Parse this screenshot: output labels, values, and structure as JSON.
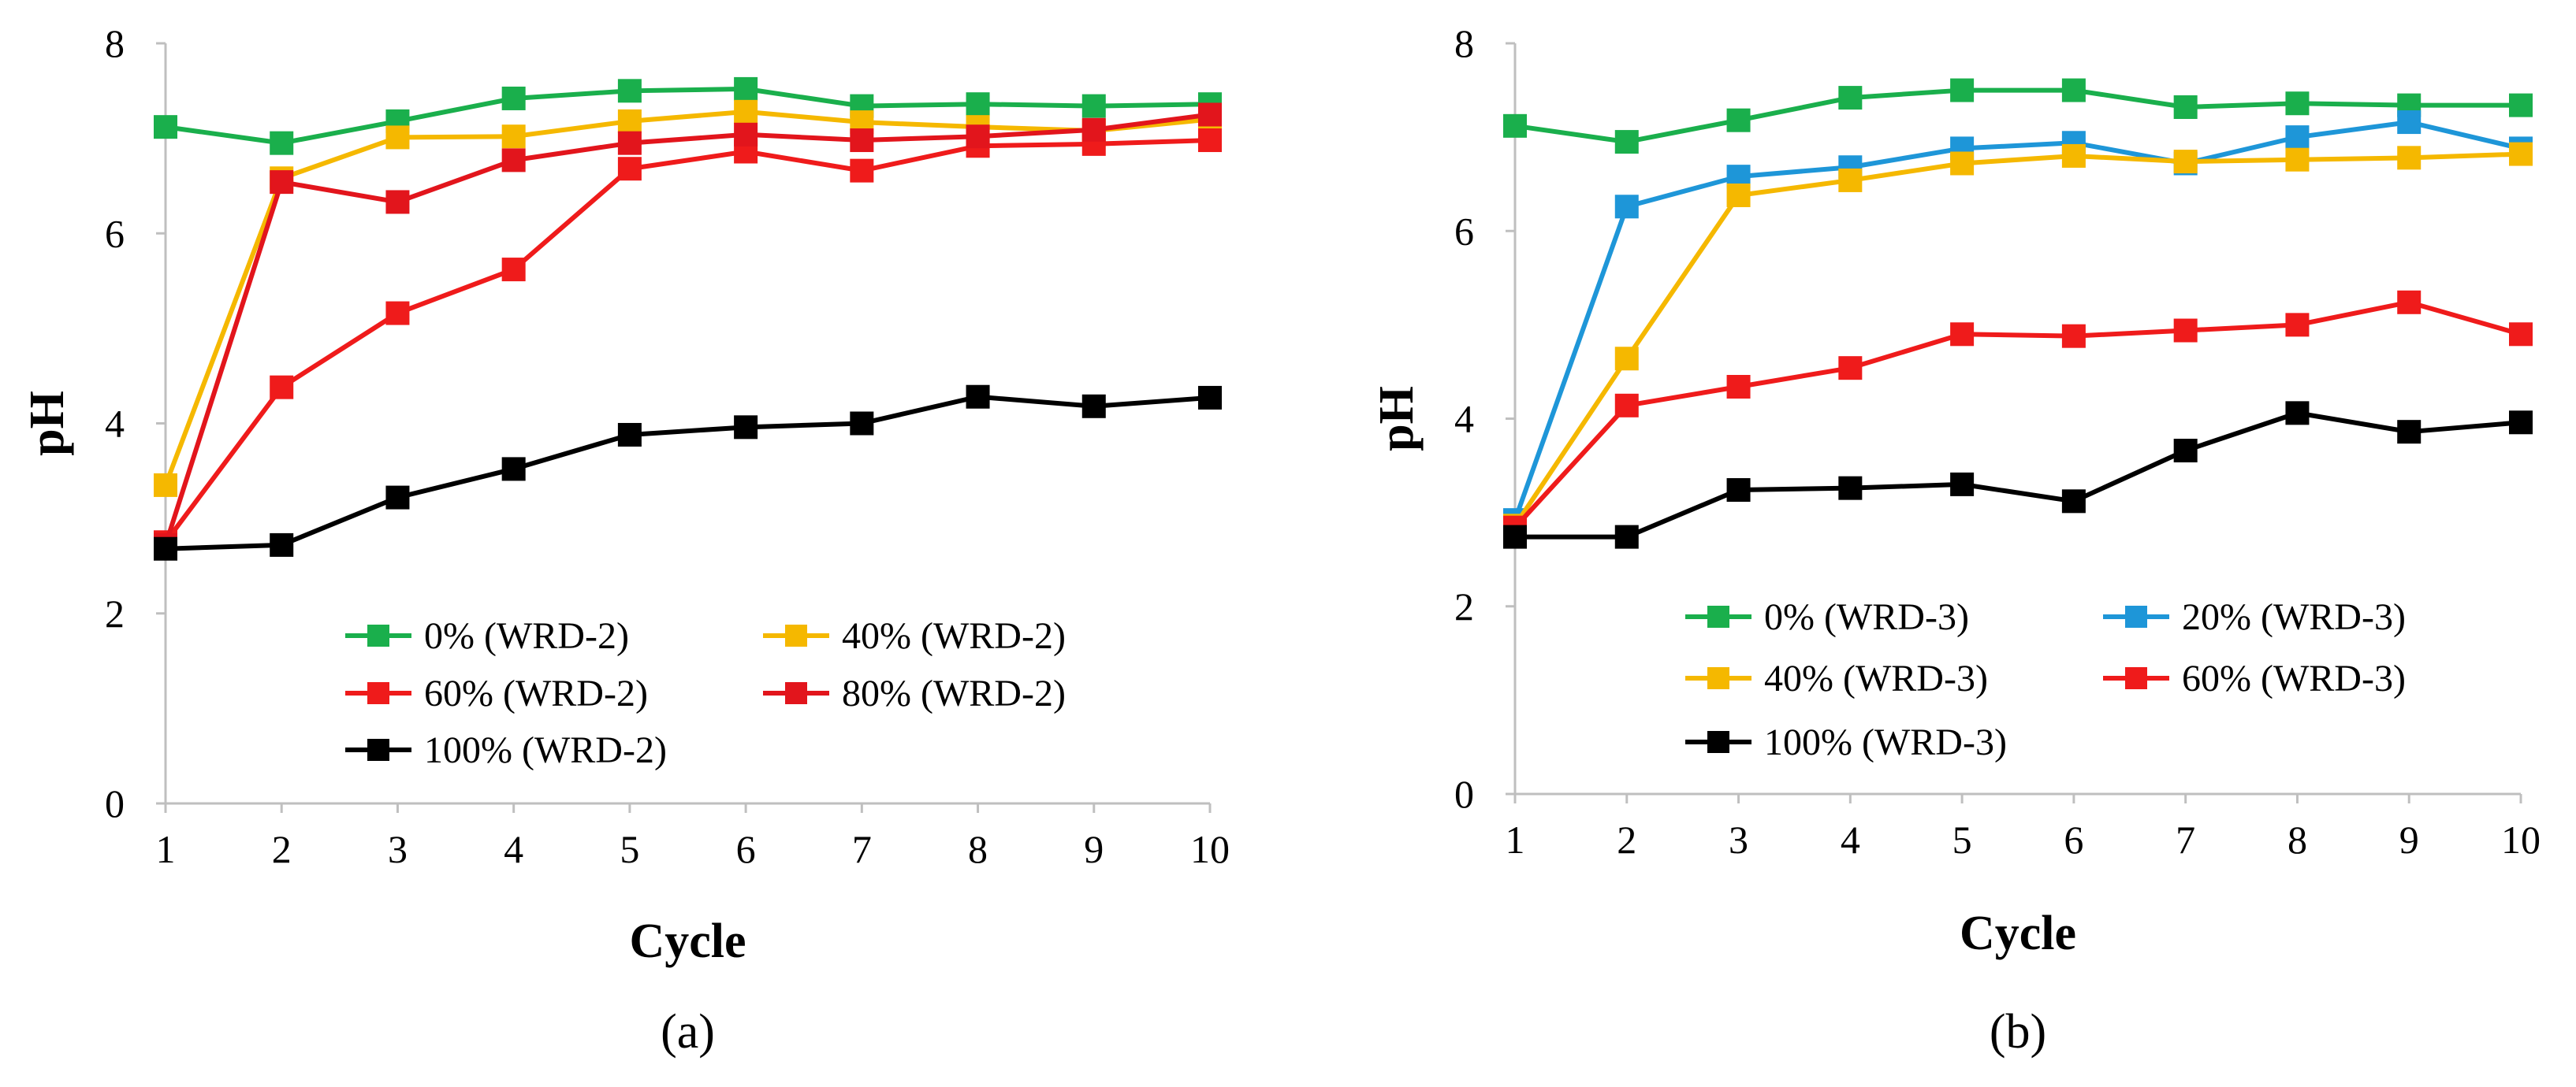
{
  "chart_data": [
    {
      "type": "line",
      "panel_label": "(a)",
      "xlabel": "Cycle",
      "ylabel": "pH",
      "x": [
        1,
        2,
        3,
        4,
        5,
        6,
        7,
        8,
        9,
        10
      ],
      "ylim": [
        0,
        8
      ],
      "yticks": [
        0,
        2,
        4,
        6,
        8
      ],
      "grid": false,
      "legend_position": "lower-right",
      "series": [
        {
          "name": "0% (WRD-2)",
          "color": "#1aaf4c",
          "values": [
            7.12,
            6.95,
            7.18,
            7.42,
            7.5,
            7.52,
            7.34,
            7.36,
            7.34,
            7.36
          ]
        },
        {
          "name": "40% (WRD-2)",
          "color": "#f5b800",
          "values": [
            3.35,
            6.58,
            7.01,
            7.02,
            7.18,
            7.28,
            7.17,
            7.12,
            7.08,
            7.2
          ]
        },
        {
          "name": "60% (WRD-2)",
          "color": "#ef1b1b",
          "values": [
            2.75,
            4.38,
            5.16,
            5.62,
            6.68,
            6.86,
            6.66,
            6.92,
            6.94,
            6.98
          ]
        },
        {
          "name": "80% (WRD-2)",
          "color": "#e2151c",
          "values": [
            2.72,
            6.54,
            6.33,
            6.77,
            6.95,
            7.04,
            6.98,
            7.02,
            7.09,
            7.25
          ]
        },
        {
          "name": "100% (WRD-2)",
          "color": "#000000",
          "values": [
            2.68,
            2.72,
            3.22,
            3.52,
            3.88,
            3.96,
            4.0,
            4.28,
            4.18,
            4.27
          ]
        }
      ]
    },
    {
      "type": "line",
      "panel_label": "(b)",
      "xlabel": "Cycle",
      "ylabel": "pH",
      "x": [
        1,
        2,
        3,
        4,
        5,
        6,
        7,
        8,
        9,
        10
      ],
      "ylim": [
        0,
        8
      ],
      "yticks": [
        0,
        2,
        4,
        6,
        8
      ],
      "grid": false,
      "legend_position": "lower-right",
      "series": [
        {
          "name": "0% (WRD-3)",
          "color": "#1aaf4c",
          "values": [
            7.12,
            6.95,
            7.18,
            7.42,
            7.5,
            7.5,
            7.32,
            7.36,
            7.34,
            7.34
          ]
        },
        {
          "name": "20% (WRD-3)",
          "color": "#1e96d8",
          "values": [
            2.92,
            6.26,
            6.58,
            6.68,
            6.88,
            6.94,
            6.72,
            7.0,
            7.16,
            6.88
          ]
        },
        {
          "name": "40% (WRD-3)",
          "color": "#f5b800",
          "values": [
            2.86,
            4.64,
            6.38,
            6.54,
            6.72,
            6.8,
            6.74,
            6.76,
            6.78,
            6.82
          ]
        },
        {
          "name": "60% (WRD-3)",
          "color": "#ef1b1b",
          "values": [
            2.84,
            4.14,
            4.34,
            4.54,
            4.9,
            4.88,
            4.94,
            5.0,
            5.24,
            4.9
          ]
        },
        {
          "name": "100% (WRD-3)",
          "color": "#000000",
          "values": [
            2.74,
            2.74,
            3.24,
            3.26,
            3.3,
            3.12,
            3.66,
            4.06,
            3.86,
            3.96
          ]
        }
      ]
    }
  ]
}
